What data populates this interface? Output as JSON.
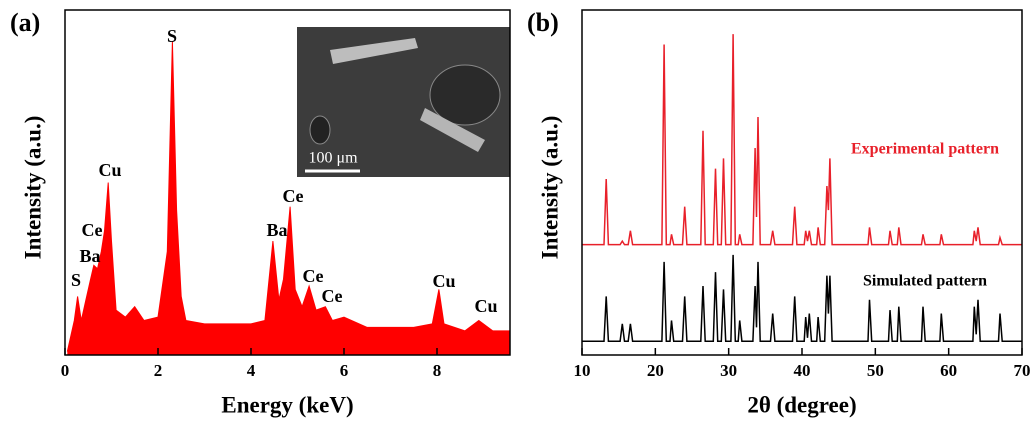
{
  "chart_data": [
    {
      "type": "area",
      "panel_label": "(a)",
      "xlabel": "Energy (keV)",
      "ylabel": "Intensity (a.u.)",
      "x": [
        0.05,
        0.2,
        0.27,
        0.35,
        0.45,
        0.55,
        0.62,
        0.7,
        0.78,
        0.85,
        0.93,
        1.0,
        1.1,
        1.3,
        1.5,
        1.7,
        2.0,
        2.2,
        2.31,
        2.4,
        2.5,
        2.6,
        3.0,
        3.5,
        4.0,
        4.3,
        4.47,
        4.6,
        4.7,
        4.84,
        4.95,
        5.1,
        5.25,
        5.4,
        5.6,
        5.75,
        6.0,
        6.5,
        7.0,
        7.5,
        7.9,
        8.04,
        8.15,
        8.6,
        8.9,
        9.2,
        9.57
      ],
      "values": [
        1,
        10,
        17,
        10,
        16,
        22,
        26,
        25,
        30,
        36,
        50,
        33,
        13,
        11,
        14,
        10,
        11,
        30,
        91,
        42,
        17,
        10,
        9,
        9,
        9,
        10,
        33,
        16,
        22,
        43,
        19,
        14,
        20,
        13,
        14,
        10,
        11,
        8,
        8,
        8,
        9,
        19,
        9,
        7,
        10,
        7,
        7
      ],
      "color": "#ff0000",
      "xlim": [
        0,
        9.57
      ],
      "ylim": [
        0,
        100
      ],
      "xticks": [
        0,
        2,
        4,
        6,
        8
      ],
      "annotations": [
        "S",
        "Cu",
        "Ce",
        "Ba",
        "S",
        "Ba",
        "Ce",
        "Ce",
        "Ce",
        "Cu",
        "Cu"
      ],
      "inset_scale_bar": "100 μm"
    },
    {
      "type": "line",
      "panel_label": "(b)",
      "xlabel": "2θ (degree)",
      "ylabel": "Intensity (a.u.)",
      "x": [
        10,
        13.0,
        13.3,
        13.6,
        15.2,
        15.5,
        15.8,
        16.3,
        16.6,
        16.9,
        20.9,
        21.2,
        21.5,
        22.0,
        22.2,
        22.5,
        23.7,
        24.0,
        24.3,
        26.2,
        26.5,
        26.8,
        27.9,
        28.2,
        28.5,
        29.0,
        29.3,
        29.6,
        30.3,
        30.6,
        30.9,
        31.3,
        31.5,
        31.8,
        33.3,
        33.6,
        33.8,
        34.0,
        34.3,
        35.7,
        36.0,
        36.3,
        38.7,
        39.0,
        39.3,
        40.3,
        40.5,
        40.75,
        41.0,
        41.3,
        42.0,
        42.2,
        42.5,
        43.1,
        43.4,
        43.6,
        43.8,
        44.1,
        49.0,
        49.2,
        49.5,
        51.8,
        52.0,
        52.3,
        53.0,
        53.2,
        53.5,
        56.3,
        56.5,
        56.8,
        58.8,
        59.0,
        59.3,
        63.3,
        63.5,
        63.75,
        64.0,
        64.3,
        66.8,
        67.0,
        67.3,
        70
      ],
      "series": [
        {
          "name": "Experimental pattern",
          "color": "#e8202a",
          "values": [
            32,
            32,
            51,
            32,
            32,
            33,
            32,
            32,
            36,
            32,
            32,
            90,
            32,
            32,
            35,
            32,
            32,
            43,
            32,
            32,
            65,
            32,
            32,
            54,
            32,
            32,
            57,
            32,
            32,
            93,
            32,
            32,
            35,
            32,
            32,
            60,
            40,
            69,
            32,
            32,
            36,
            32,
            32,
            43,
            32,
            32,
            36,
            33,
            36,
            32,
            32,
            37,
            32,
            32,
            49,
            42,
            57,
            32,
            32,
            37,
            32,
            32,
            36,
            32,
            32,
            37,
            32,
            32,
            35,
            32,
            32,
            35,
            32,
            32,
            36,
            33,
            37,
            32,
            32,
            34,
            32,
            32
          ]
        },
        {
          "name": "Simulated pattern",
          "color": "#000000",
          "values": [
            4,
            4,
            17,
            4,
            4,
            9,
            4,
            4,
            9,
            4,
            4,
            27,
            4,
            4,
            10,
            4,
            4,
            17,
            4,
            4,
            20,
            4,
            4,
            24,
            4,
            4,
            19,
            4,
            4,
            29,
            4,
            4,
            10,
            4,
            4,
            20,
            8,
            27,
            4,
            4,
            12,
            4,
            4,
            17,
            4,
            4,
            11,
            5,
            12,
            4,
            4,
            11,
            4,
            4,
            23,
            12,
            23,
            4,
            4,
            16,
            4,
            4,
            13,
            4,
            4,
            14,
            4,
            4,
            14,
            4,
            4,
            12,
            4,
            4,
            14,
            6,
            16,
            4,
            4,
            12,
            4,
            4
          ]
        }
      ],
      "xlim": [
        10,
        70
      ],
      "ylim": [
        0,
        100
      ],
      "xticks": [
        10,
        20,
        30,
        40,
        50,
        60,
        70
      ]
    }
  ]
}
